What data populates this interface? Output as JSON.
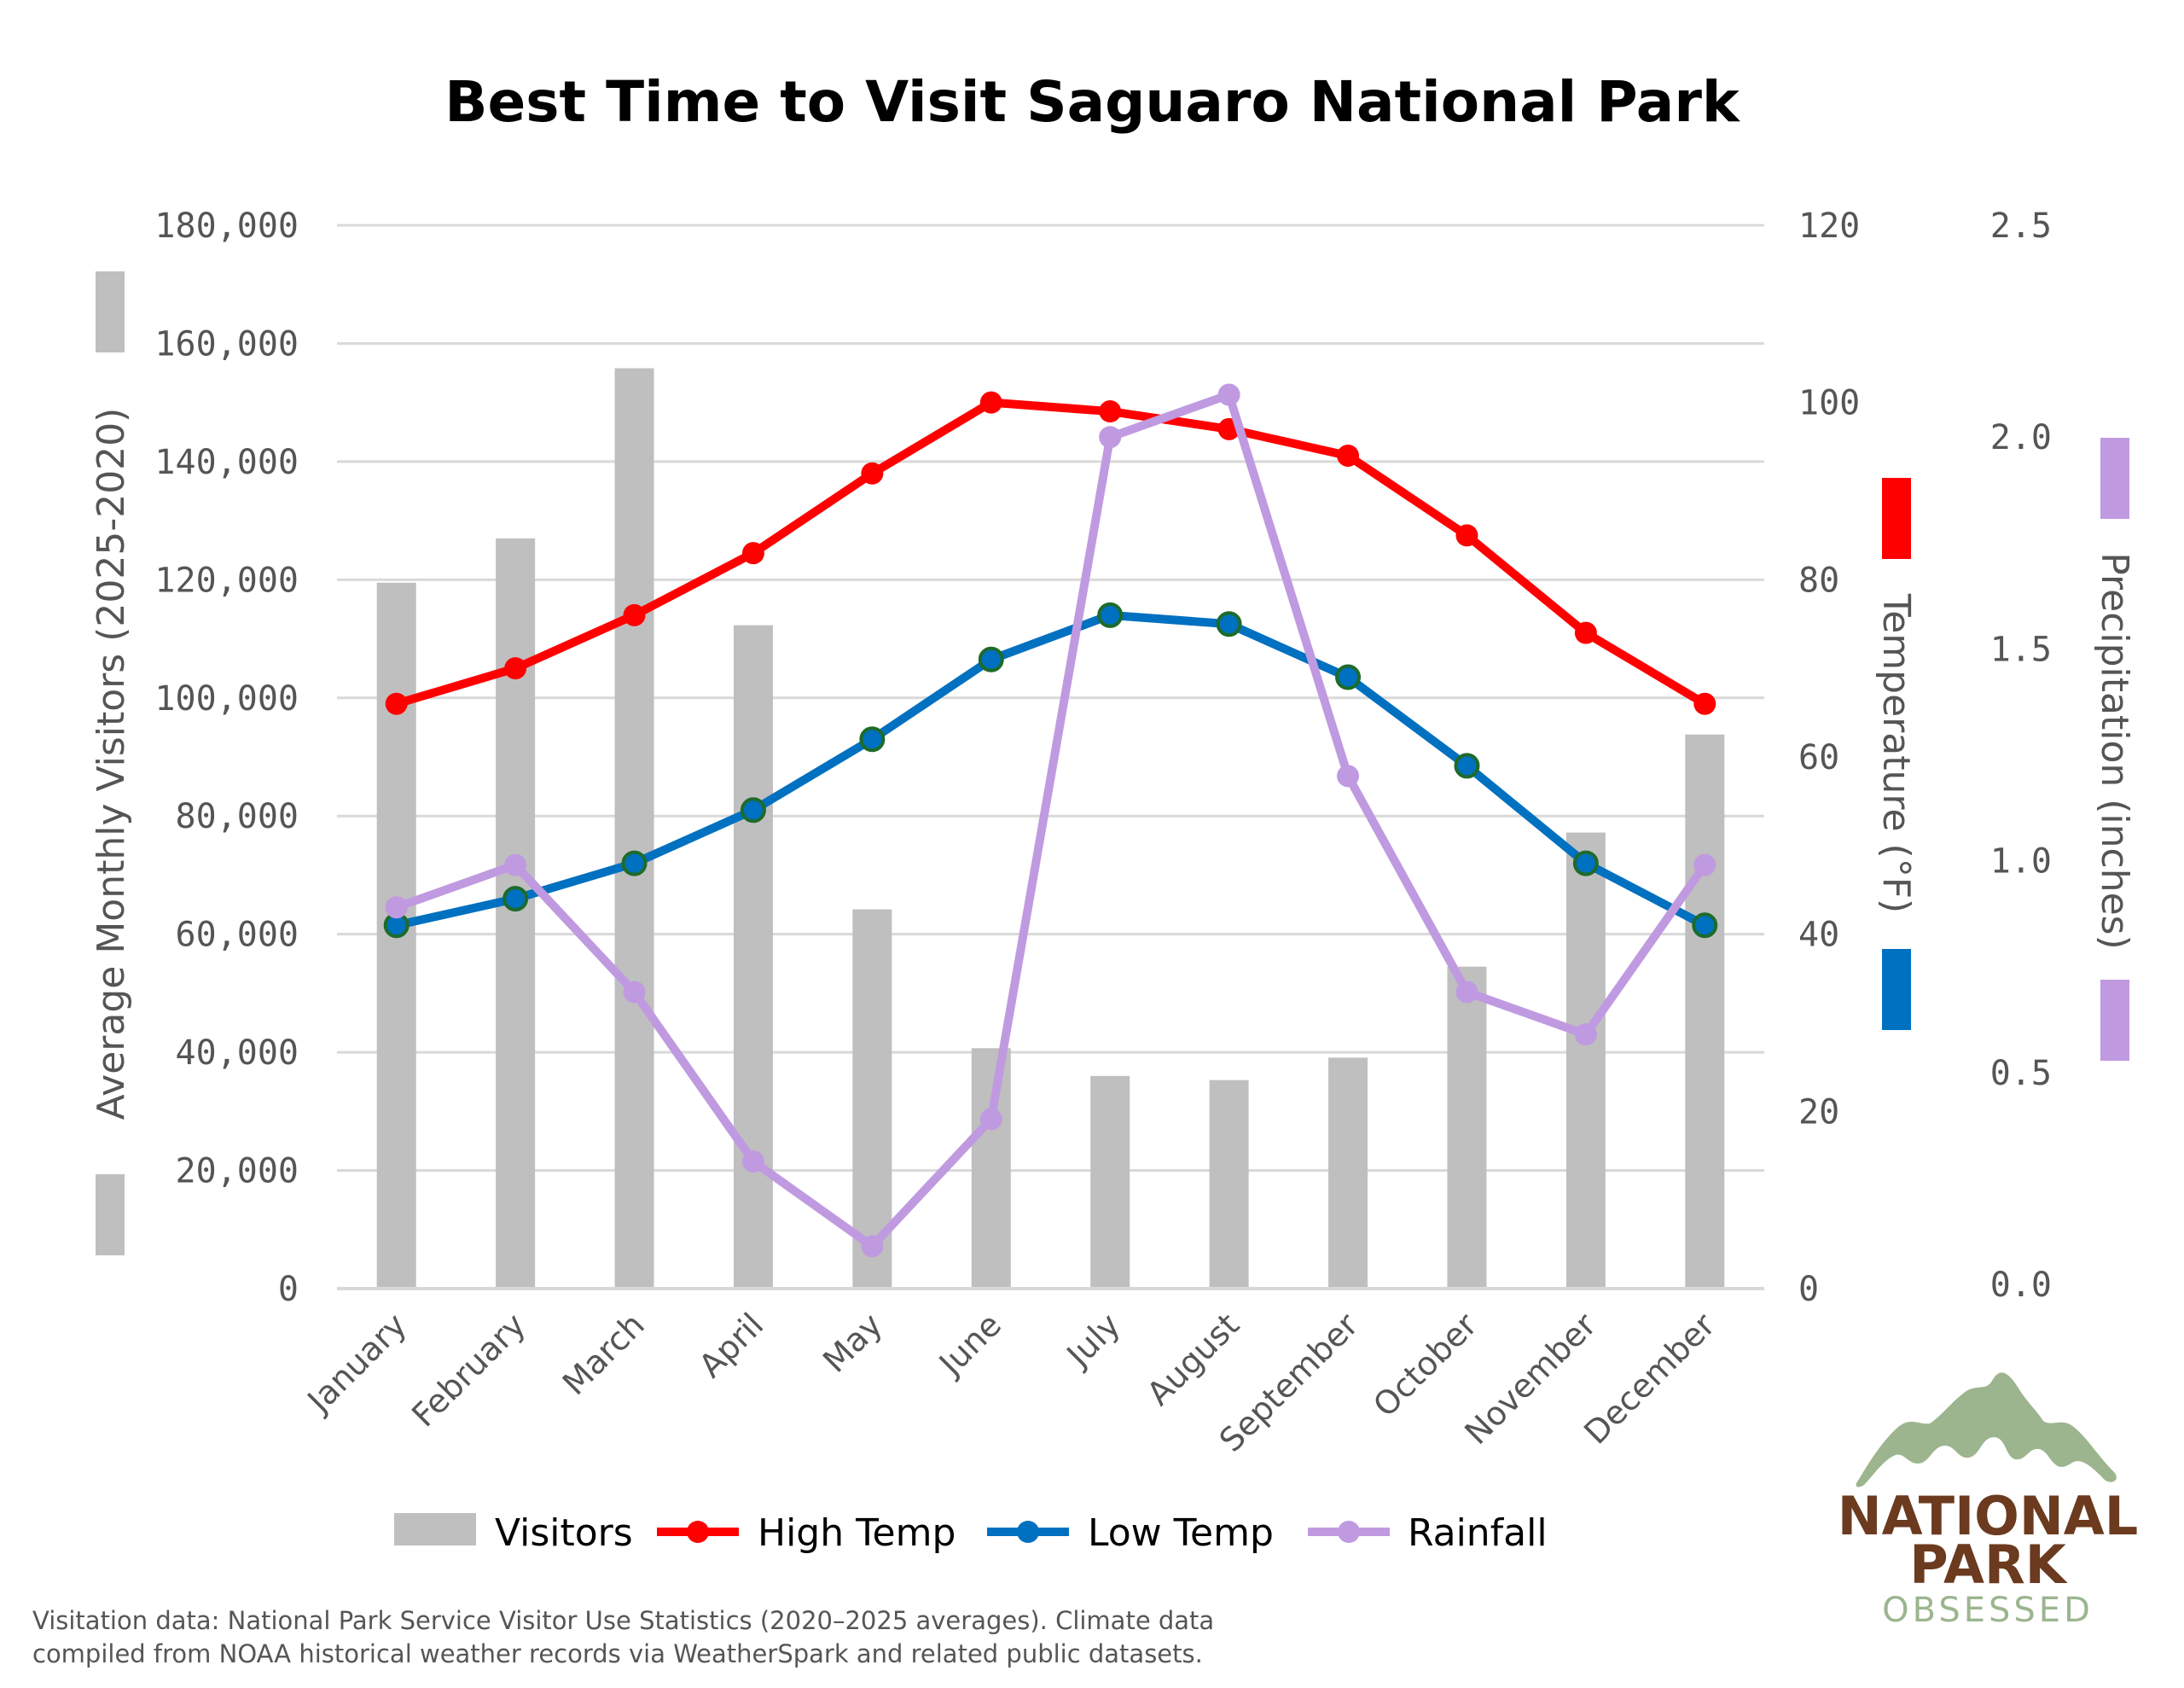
{
  "chart_data": {
    "type": "bar+line",
    "title": "Best Time to Visit Saguaro National Park",
    "categories": [
      "January",
      "February",
      "March",
      "April",
      "May",
      "June",
      "July",
      "August",
      "September",
      "October",
      "November",
      "December"
    ],
    "axes": {
      "left": {
        "label": "Average Monthly Visitors (2025-2020)",
        "range": [
          0,
          180000
        ],
        "ticks": [
          0,
          20000,
          40000,
          60000,
          80000,
          100000,
          120000,
          140000,
          160000,
          180000
        ],
        "tick_labels": [
          "0",
          "20,000",
          "40,000",
          "60,000",
          "80,000",
          "100,000",
          "120,000",
          "140,000",
          "160,000",
          "180,000"
        ]
      },
      "right_temperature": {
        "label": "Temperature (°F)",
        "range": [
          0,
          120
        ],
        "ticks": [
          0,
          20,
          40,
          60,
          80,
          100,
          120
        ],
        "tick_labels": [
          "0",
          "20",
          "40",
          "60",
          "80",
          "100",
          "120"
        ]
      },
      "right_precipitation": {
        "label": "Precipitation (inches)",
        "range": [
          0,
          2.5
        ],
        "ticks": [
          0,
          0.5,
          1.0,
          1.5,
          2.0,
          2.5
        ],
        "tick_labels": [
          "0.0",
          "0.5",
          "1.0",
          "1.5",
          "2.0",
          "2.5"
        ]
      }
    },
    "series": [
      {
        "name": "Visitors",
        "type": "bar",
        "axis": "left",
        "color": "#bfbfbf",
        "values": [
          119500,
          127000,
          155800,
          112300,
          64200,
          40700,
          36000,
          35300,
          39100,
          54500,
          77200,
          93800
        ]
      },
      {
        "name": "High Temp",
        "type": "line",
        "axis": "right_temperature",
        "color": "#ff0000",
        "values": [
          66,
          70,
          76,
          83,
          92,
          100,
          99,
          97,
          94,
          85,
          74,
          66
        ]
      },
      {
        "name": "Low Temp",
        "type": "line",
        "axis": "right_temperature",
        "color": "#0070c0",
        "marker_edge": "#1e6b2a",
        "values": [
          41,
          44,
          48,
          54,
          62,
          71,
          76,
          75,
          69,
          59,
          48,
          41
        ]
      },
      {
        "name": "Rainfall",
        "type": "line",
        "axis": "right_precipitation",
        "color": "#c09ae0",
        "values": [
          0.89,
          0.99,
          0.69,
          0.29,
          0.09,
          0.39,
          2.0,
          2.1,
          1.2,
          0.69,
          0.59,
          0.99
        ]
      }
    ],
    "legend": {
      "position": "bottom",
      "entries": [
        "Visitors",
        "High Temp",
        "Low Temp",
        "Rainfall"
      ]
    },
    "grid": true
  },
  "footer": {
    "line1": "Visitation data: National Park Service Visitor Use Statistics (2020–2025 averages). Climate data",
    "line2": "compiled from NOAA historical weather records via WeatherSpark and related public datasets."
  },
  "logo": {
    "line1": "NATIONAL",
    "line2": "PARK",
    "line3": "OBSESSED",
    "mountain_color": "#9cb58f",
    "text_color": "#6b3a1f"
  }
}
